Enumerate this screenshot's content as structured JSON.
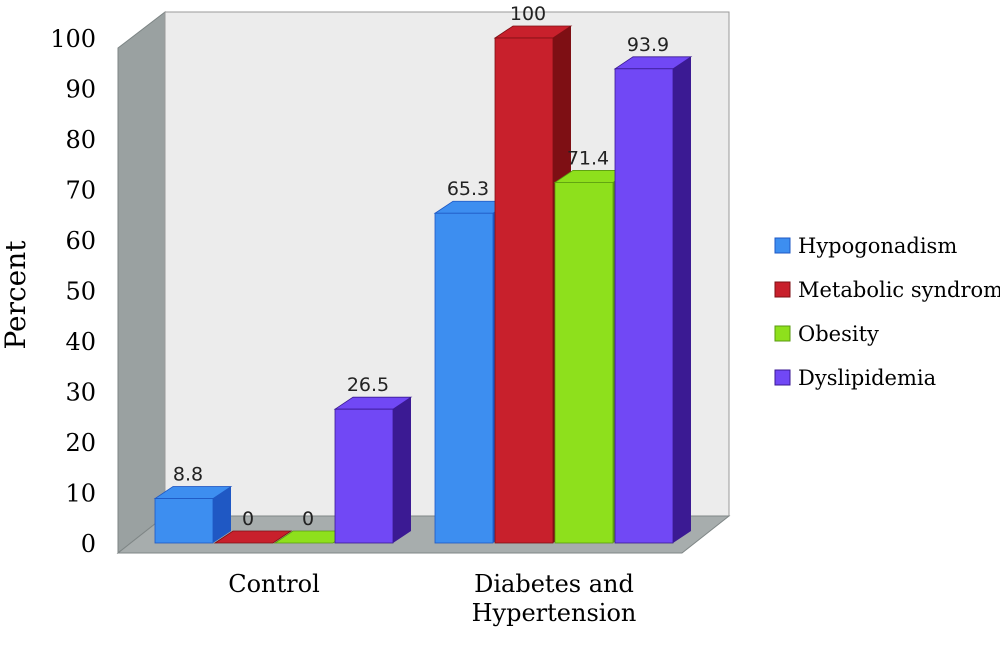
{
  "chart_data": {
    "type": "bar",
    "title": "",
    "xlabel": "",
    "ylabel": "Percent",
    "ylim": [
      0,
      100
    ],
    "yticks": [
      "0",
      "10",
      "20",
      "30",
      "40",
      "50",
      "60",
      "70",
      "80",
      "90",
      "100"
    ],
    "categories": [
      "Control",
      "Diabetes and Hypertension"
    ],
    "category_lines": [
      [
        "Control"
      ],
      [
        "Diabetes and",
        "Hypertension"
      ]
    ],
    "series": [
      {
        "name": "Hypogonadism",
        "values": [
          8.8,
          65.3
        ],
        "labels": [
          "8.8",
          "65.3"
        ],
        "color": "#3d8ef0",
        "side": "#1f58c4"
      },
      {
        "name": "Metabolic syndrome",
        "values": [
          0,
          100
        ],
        "labels": [
          "0",
          "100"
        ],
        "color": "#c8202c",
        "side": "#7e0f14"
      },
      {
        "name": "Obesity",
        "values": [
          0,
          71.4
        ],
        "labels": [
          "0",
          "71.4"
        ],
        "color": "#8ee01c",
        "side": "#5a9a10"
      },
      {
        "name": "Dyslipidemia",
        "values": [
          26.5,
          93.9
        ],
        "labels": [
          "26.5",
          "93.9"
        ],
        "color": "#7148f5",
        "side": "#3b1a93"
      }
    ],
    "grid": false,
    "legend": "right",
    "style": "3d-clustered-column"
  }
}
